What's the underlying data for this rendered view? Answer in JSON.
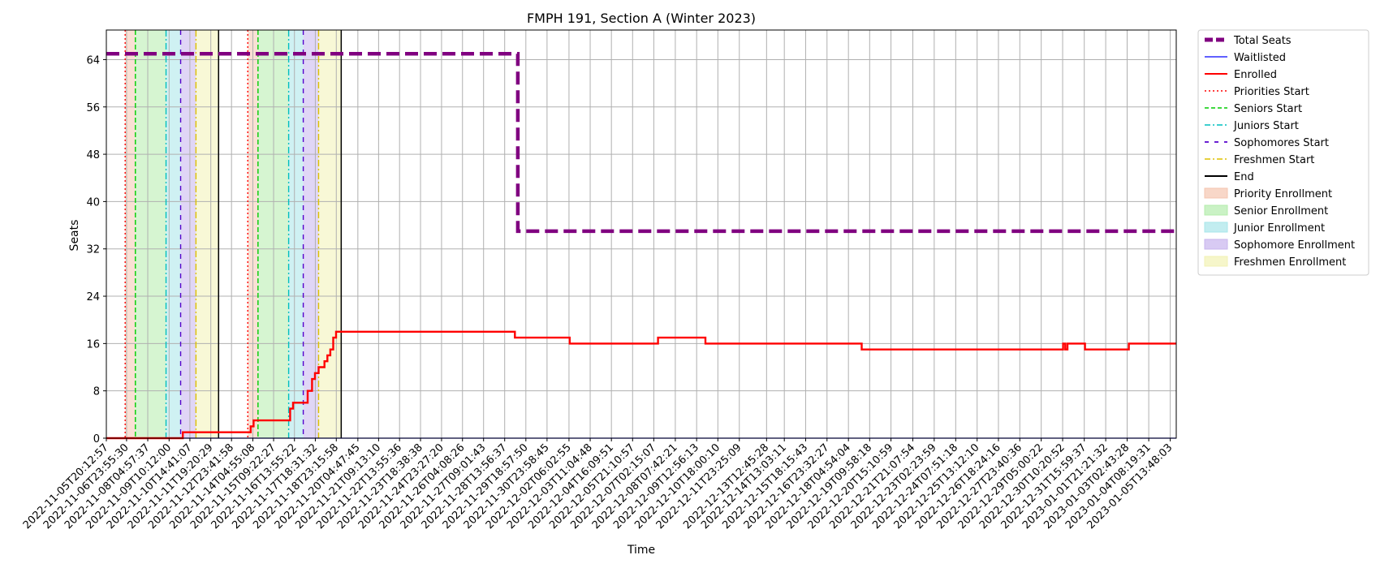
{
  "chart_data": {
    "type": "line",
    "title": "FMPH 191, Section A (Winter 2023)",
    "xlabel": "Time",
    "ylabel": "Seats",
    "ylim": [
      0,
      69
    ],
    "yticks": [
      0,
      8,
      16,
      24,
      32,
      40,
      48,
      56,
      64
    ],
    "grid": true,
    "legend_position": "outside right, top",
    "x_range": [
      "2022-11-05T20:12:57",
      "2023-01-05T22:00:00"
    ],
    "xticks": [
      "2022-11-05T20:12:57",
      "2022-11-06T23:55:30",
      "2022-11-08T04:57:37",
      "2022-11-09T10:12:00",
      "2022-11-10T14:41:07",
      "2022-11-11T19:20:29",
      "2022-11-12T23:41:58",
      "2022-11-14T04:55:08",
      "2022-11-15T09:22:27",
      "2022-11-16T13:55:22",
      "2022-11-17T18:31:32",
      "2022-11-18T23:15:58",
      "2022-11-20T04:47:45",
      "2022-11-21T09:13:10",
      "2022-11-22T13:55:36",
      "2022-11-23T18:38:38",
      "2022-11-24T23:27:20",
      "2022-11-26T04:08:26",
      "2022-11-27T09:01:43",
      "2022-11-28T13:56:37",
      "2022-11-29T18:57:50",
      "2022-11-30T23:58:45",
      "2022-12-02T06:02:55",
      "2022-12-03T11:04:48",
      "2022-12-04T16:09:51",
      "2022-12-05T21:10:57",
      "2022-12-07T02:15:07",
      "2022-12-08T07:42:21",
      "2022-12-09T12:56:13",
      "2022-12-10T18:00:10",
      "2022-12-11T23:25:09",
      "2022-12-13T12:45:28",
      "2022-12-14T13:03:11",
      "2022-12-15T18:15:43",
      "2022-12-16T23:32:27",
      "2022-12-18T04:54:04",
      "2022-12-19T09:58:18",
      "2022-12-20T15:10:59",
      "2022-12-21T21:07:54",
      "2022-12-23T02:23:59",
      "2022-12-24T07:51:18",
      "2022-12-25T13:12:10",
      "2022-12-26T18:24:16",
      "2022-12-27T23:40:36",
      "2022-12-29T05:00:22",
      "2022-12-30T10:20:52",
      "2022-12-31T15:59:37",
      "2023-01-01T21:21:32",
      "2023-01-03T02:43:28",
      "2023-01-04T08:19:31",
      "2023-01-05T13:48:03"
    ],
    "series": [
      {
        "name": "Total Seats",
        "color": "#800080",
        "style": "dashed-thick",
        "points": [
          [
            "2022-11-05T20:12:57",
            65
          ],
          [
            "2022-11-29T08:00:00",
            65
          ],
          [
            "2022-11-29T08:00:00",
            35
          ],
          [
            "2023-01-05T22:00:00",
            35
          ]
        ]
      },
      {
        "name": "Waitlisted",
        "color": "#0000ff",
        "style": "solid-thin",
        "points": [
          [
            "2022-11-05T20:12:57",
            0
          ],
          [
            "2023-01-05T22:00:00",
            0
          ]
        ]
      },
      {
        "name": "Enrolled",
        "color": "#ff0000",
        "style": "step",
        "points": [
          [
            "2022-11-05T20:12:57",
            0
          ],
          [
            "2022-11-10T05:00:00",
            0
          ],
          [
            "2022-11-10T05:00:00",
            1
          ],
          [
            "2022-11-14T02:00:00",
            1
          ],
          [
            "2022-11-14T02:00:00",
            2
          ],
          [
            "2022-11-14T06:00:00",
            2
          ],
          [
            "2022-11-14T06:00:00",
            3
          ],
          [
            "2022-11-16T08:00:00",
            3
          ],
          [
            "2022-11-16T08:00:00",
            5
          ],
          [
            "2022-11-16T12:00:00",
            5
          ],
          [
            "2022-11-16T12:00:00",
            6
          ],
          [
            "2022-11-17T08:00:00",
            6
          ],
          [
            "2022-11-17T08:00:00",
            8
          ],
          [
            "2022-11-17T14:00:00",
            8
          ],
          [
            "2022-11-17T14:00:00",
            10
          ],
          [
            "2022-11-17T18:00:00",
            10
          ],
          [
            "2022-11-17T18:00:00",
            11
          ],
          [
            "2022-11-17T23:00:00",
            11
          ],
          [
            "2022-11-17T23:00:00",
            12
          ],
          [
            "2022-11-18T07:00:00",
            12
          ],
          [
            "2022-11-18T07:00:00",
            13
          ],
          [
            "2022-11-18T11:00:00",
            13
          ],
          [
            "2022-11-18T11:00:00",
            14
          ],
          [
            "2022-11-18T15:00:00",
            14
          ],
          [
            "2022-11-18T15:00:00",
            15
          ],
          [
            "2022-11-18T19:00:00",
            15
          ],
          [
            "2022-11-18T19:00:00",
            17
          ],
          [
            "2022-11-18T23:00:00",
            17
          ],
          [
            "2022-11-18T23:00:00",
            18
          ],
          [
            "2022-11-29T04:00:00",
            18
          ],
          [
            "2022-11-29T04:00:00",
            17
          ],
          [
            "2022-12-02T07:00:00",
            17
          ],
          [
            "2022-12-02T07:00:00",
            16
          ],
          [
            "2022-12-07T08:00:00",
            16
          ],
          [
            "2022-12-07T08:00:00",
            17
          ],
          [
            "2022-12-10T01:00:00",
            17
          ],
          [
            "2022-12-10T01:00:00",
            16
          ],
          [
            "2022-12-18T23:00:00",
            16
          ],
          [
            "2022-12-18T23:00:00",
            15
          ],
          [
            "2022-12-30T11:00:00",
            15
          ],
          [
            "2022-12-30T11:00:00",
            16
          ],
          [
            "2022-12-30T14:00:00",
            16
          ],
          [
            "2022-12-30T14:00:00",
            15
          ],
          [
            "2022-12-30T17:00:00",
            15
          ],
          [
            "2022-12-30T17:00:00",
            16
          ],
          [
            "2022-12-31T17:00:00",
            16
          ],
          [
            "2022-12-31T17:00:00",
            15
          ],
          [
            "2023-01-03T05:00:00",
            15
          ],
          [
            "2023-01-03T05:00:00",
            16
          ],
          [
            "2023-01-05T22:00:00",
            16
          ]
        ]
      }
    ],
    "periods": [
      {
        "priority": [
          "2022-11-06T22:00:00",
          "2022-11-07T12:00:00"
        ],
        "seniors": [
          "2022-11-07T12:00:00",
          "2022-11-09T06:00:00"
        ],
        "juniors": [
          "2022-11-09T06:00:00",
          "2022-11-10T02:00:00"
        ],
        "sophomores": [
          "2022-11-10T02:00:00",
          "2022-11-10T23:00:00"
        ],
        "freshmen": [
          "2022-11-10T23:00:00",
          "2022-11-12T06:00:00"
        ],
        "end": "2022-11-12T06:00:00"
      },
      {
        "priority": [
          "2022-11-13T22:00:00",
          "2022-11-14T12:00:00"
        ],
        "seniors": [
          "2022-11-14T12:00:00",
          "2022-11-16T06:00:00"
        ],
        "juniors": [
          "2022-11-16T06:00:00",
          "2022-11-17T02:00:00"
        ],
        "sophomores": [
          "2022-11-17T02:00:00",
          "2022-11-17T23:00:00"
        ],
        "freshmen": [
          "2022-11-17T23:00:00",
          "2022-11-19T06:00:00"
        ],
        "end": "2022-11-19T06:00:00"
      }
    ],
    "legend": [
      {
        "label": "Total Seats",
        "kind": "line",
        "color": "#800080",
        "dash": "dash-thick"
      },
      {
        "label": "Waitlisted",
        "kind": "line",
        "color": "#0000ff",
        "dash": "solid-thin"
      },
      {
        "label": "Enrolled",
        "kind": "line",
        "color": "#ff0000",
        "dash": "solid"
      },
      {
        "label": "Priorities Start",
        "kind": "line",
        "color": "#ff0000",
        "dash": "dotted"
      },
      {
        "label": "Seniors Start",
        "kind": "line",
        "color": "#00cc00",
        "dash": "dashed"
      },
      {
        "label": "Juniors Start",
        "kind": "line",
        "color": "#00bfbf",
        "dash": "dashdot"
      },
      {
        "label": "Sophomores Start",
        "kind": "line",
        "color": "#5500cc",
        "dash": "loose-dash"
      },
      {
        "label": "Freshmen Start",
        "kind": "line",
        "color": "#ddc000",
        "dash": "dashdot"
      },
      {
        "label": "End",
        "kind": "line",
        "color": "#000000",
        "dash": "solid"
      },
      {
        "label": "Priority Enrollment",
        "kind": "patch",
        "color": "#f5c6b0"
      },
      {
        "label": "Senior Enrollment",
        "kind": "patch",
        "color": "#b4ecac"
      },
      {
        "label": "Junior Enrollment",
        "kind": "patch",
        "color": "#a8e6ea"
      },
      {
        "label": "Sophomore Enrollment",
        "kind": "patch",
        "color": "#c7b4ee"
      },
      {
        "label": "Freshmen Enrollment",
        "kind": "patch",
        "color": "#f2f2b4"
      }
    ]
  }
}
